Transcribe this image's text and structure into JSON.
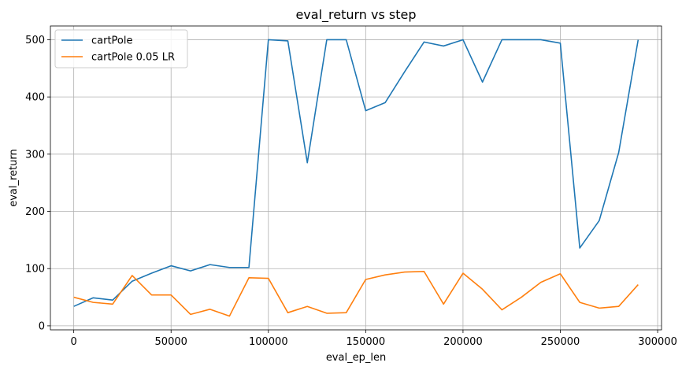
{
  "chart_data": {
    "type": "line",
    "title": "eval_return vs step",
    "xlabel": "eval_ep_len",
    "ylabel": "eval_return",
    "xlim": [
      -12000,
      302000
    ],
    "ylim": [
      -7,
      524
    ],
    "xticks": [
      0,
      50000,
      100000,
      150000,
      200000,
      250000,
      300000
    ],
    "xtick_labels": [
      "0",
      "50000",
      "100000",
      "150000",
      "200000",
      "250000",
      "300000"
    ],
    "yticks": [
      0,
      100,
      200,
      300,
      400,
      500
    ],
    "ytick_labels": [
      "0",
      "100",
      "200",
      "300",
      "400",
      "500"
    ],
    "grid": true,
    "legend_position": "top-left",
    "x": [
      0,
      10000,
      20000,
      30000,
      40000,
      50000,
      60000,
      70000,
      80000,
      90000,
      100000,
      110000,
      120000,
      130000,
      140000,
      150000,
      160000,
      170000,
      180000,
      190000,
      200000,
      210000,
      220000,
      230000,
      240000,
      250000,
      260000,
      270000,
      280000,
      290000
    ],
    "series": [
      {
        "name": "cartPole",
        "color": "#1f77b4",
        "values": [
          34,
          49,
          45,
          78,
          92,
          105,
          96,
          107,
          102,
          102,
          500,
          498,
          285,
          500,
          500,
          376,
          390,
          444,
          496,
          489,
          500,
          426,
          500,
          500,
          500,
          494,
          136,
          184,
          303,
          500
        ]
      },
      {
        "name": "cartPole 0.05 LR",
        "color": "#ff7f0e",
        "values": [
          50,
          41,
          38,
          88,
          54,
          54,
          20,
          29,
          17,
          84,
          83,
          23,
          34,
          22,
          23,
          81,
          89,
          94,
          95,
          38,
          92,
          64,
          28,
          50,
          76,
          91,
          41,
          31,
          34,
          72
        ]
      }
    ]
  }
}
